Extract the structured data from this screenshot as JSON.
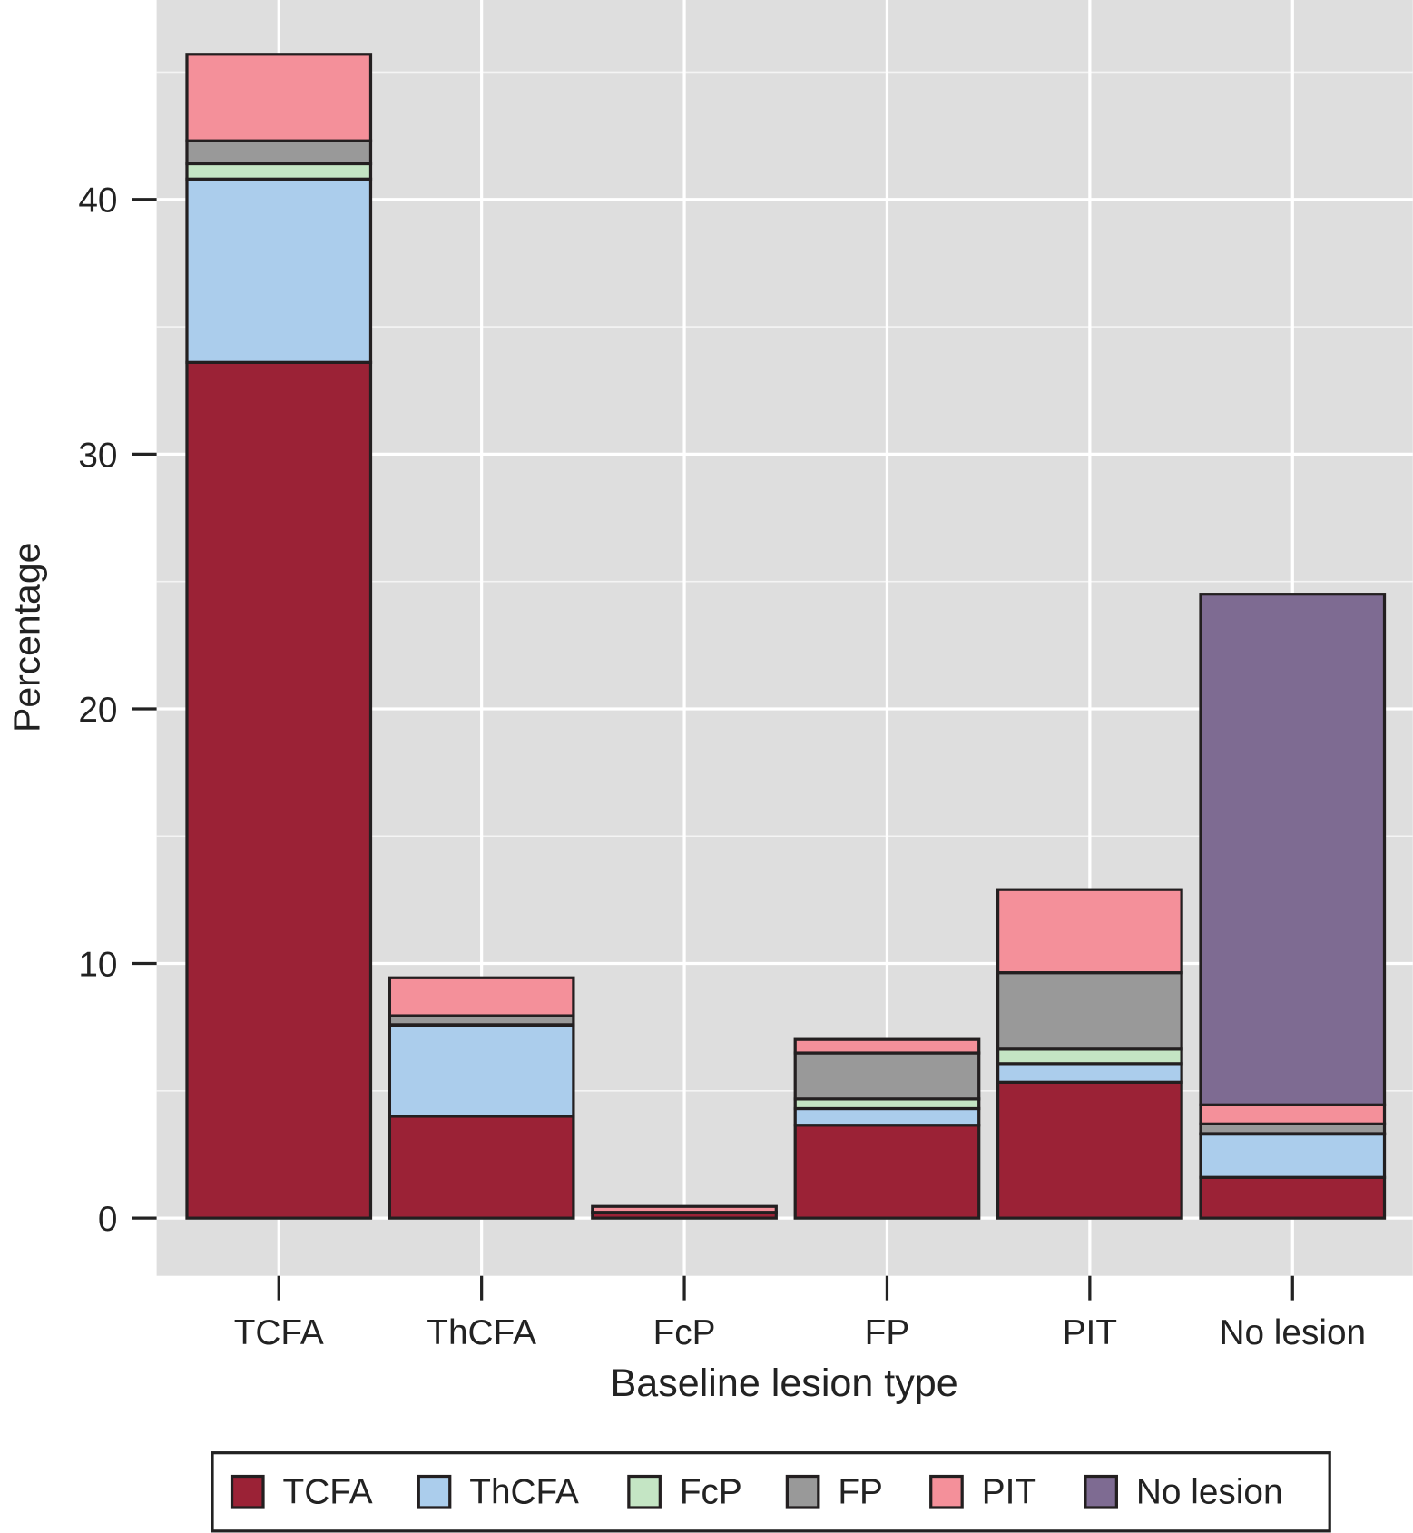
{
  "chart_data": {
    "type": "bar",
    "stacked": true,
    "xlabel": "Baseline lesion type",
    "ylabel": "Percentage",
    "ylim": [
      -2.3,
      47.8
    ],
    "yticks": [
      0,
      10,
      20,
      30,
      40
    ],
    "grid": true,
    "legend_position": "bottom",
    "categories": [
      "TCFA",
      "ThCFA",
      "FcP",
      "FP",
      "PIT",
      "No lesion"
    ],
    "series": [
      {
        "name": "TCFA",
        "color": "#9b2236",
        "values": [
          33.6,
          4.0,
          0.23,
          3.65,
          5.34,
          1.6
        ]
      },
      {
        "name": "ThCFA",
        "color": "#abcdec",
        "values": [
          7.2,
          3.56,
          0,
          0.65,
          0.73,
          1.7
        ]
      },
      {
        "name": "FcP",
        "color": "#c4e5c4",
        "values": [
          0.6,
          0.04,
          0,
          0.38,
          0.57,
          0.02
        ]
      },
      {
        "name": "FP",
        "color": "#999999",
        "values": [
          0.9,
          0.35,
          0,
          1.81,
          3.0,
          0.38
        ]
      },
      {
        "name": "PIT",
        "color": "#f4909a",
        "values": [
          3.4,
          1.49,
          0.23,
          0.53,
          3.26,
          0.75
        ]
      },
      {
        "name": "No lesion",
        "color": "#7e6b92",
        "values": [
          0,
          0,
          0,
          0,
          0,
          20.05
        ]
      }
    ]
  }
}
